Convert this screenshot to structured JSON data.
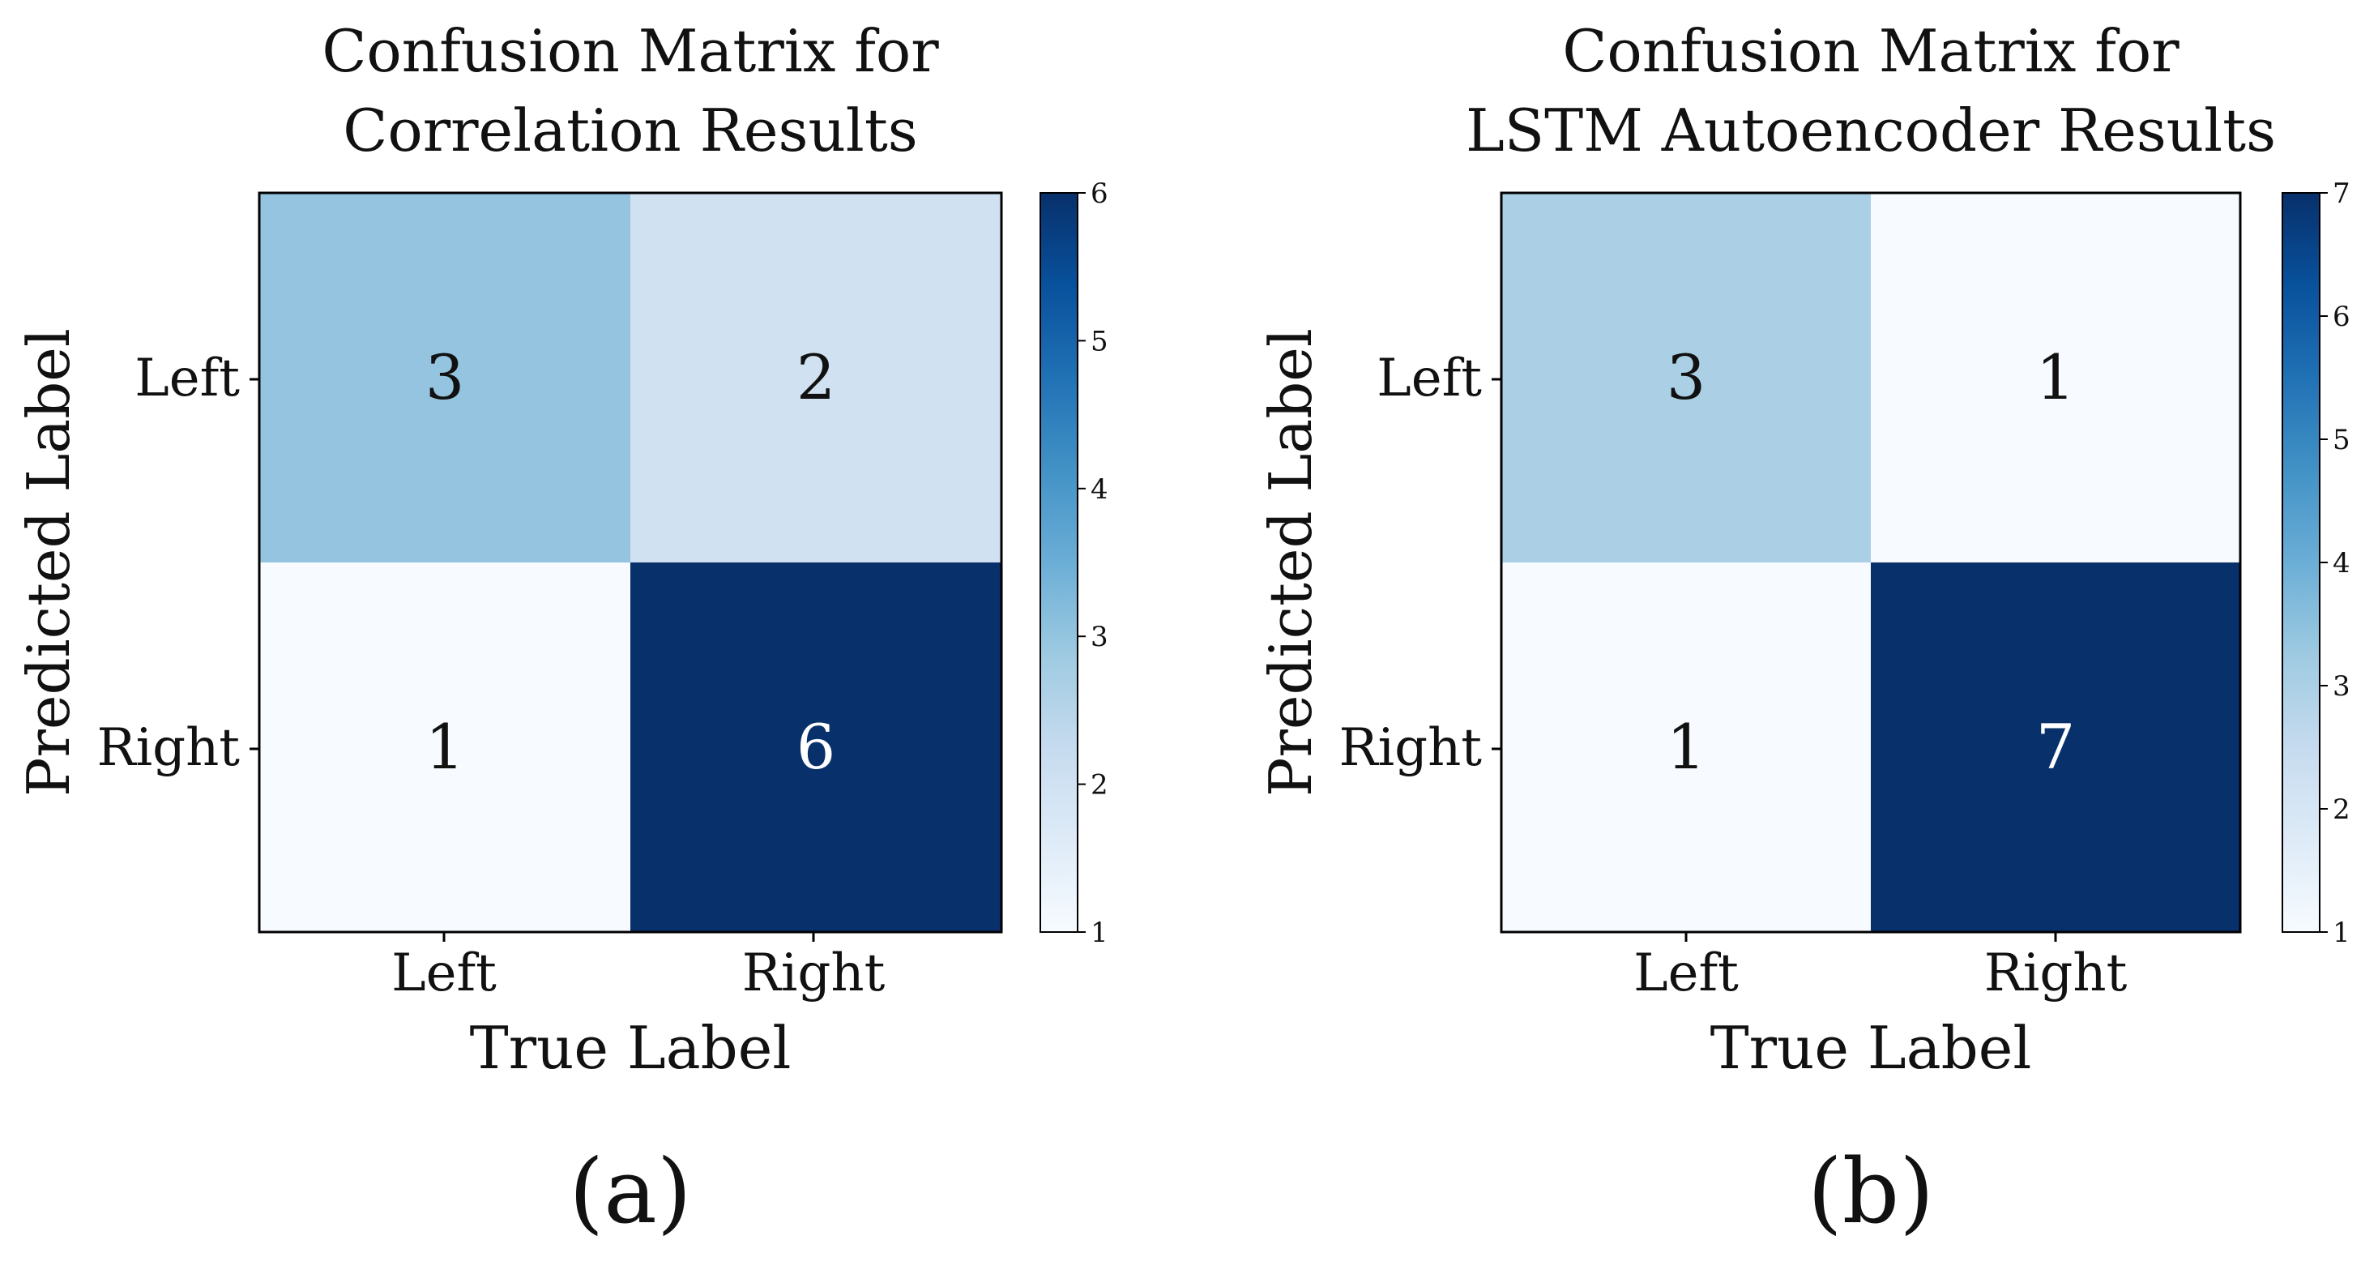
{
  "chart_data": [
    {
      "type": "heatmap",
      "title_lines": [
        "Confusion Matrix for",
        "Correlation Results"
      ],
      "xlabel": "True Label",
      "ylabel": "Predicted Label",
      "x_categories": [
        "Left",
        "Right"
      ],
      "y_categories": [
        "Left",
        "Right"
      ],
      "values": [
        [
          3,
          2
        ],
        [
          1,
          6
        ]
      ],
      "colormap": "Blues",
      "colorbar": {
        "min": 1,
        "max": 6,
        "ticks": [
          1,
          2,
          3,
          4,
          5,
          6
        ]
      },
      "panel_label": "(a)"
    },
    {
      "type": "heatmap",
      "title_lines": [
        "Confusion Matrix for",
        "LSTM Autoencoder Results"
      ],
      "xlabel": "True Label",
      "ylabel": "Predicted Label",
      "x_categories": [
        "Left",
        "Right"
      ],
      "y_categories": [
        "Left",
        "Right"
      ],
      "values": [
        [
          3,
          1
        ],
        [
          1,
          7
        ]
      ],
      "colormap": "Blues",
      "colorbar": {
        "min": 1,
        "max": 7,
        "ticks": [
          1,
          2,
          3,
          4,
          5,
          6,
          7
        ]
      },
      "panel_label": "(b)"
    }
  ],
  "colors": {
    "blues_low": "#f7fbff",
    "blues_high": "#08306b",
    "text_dark": "#111111",
    "text_light": "#ffffff"
  }
}
